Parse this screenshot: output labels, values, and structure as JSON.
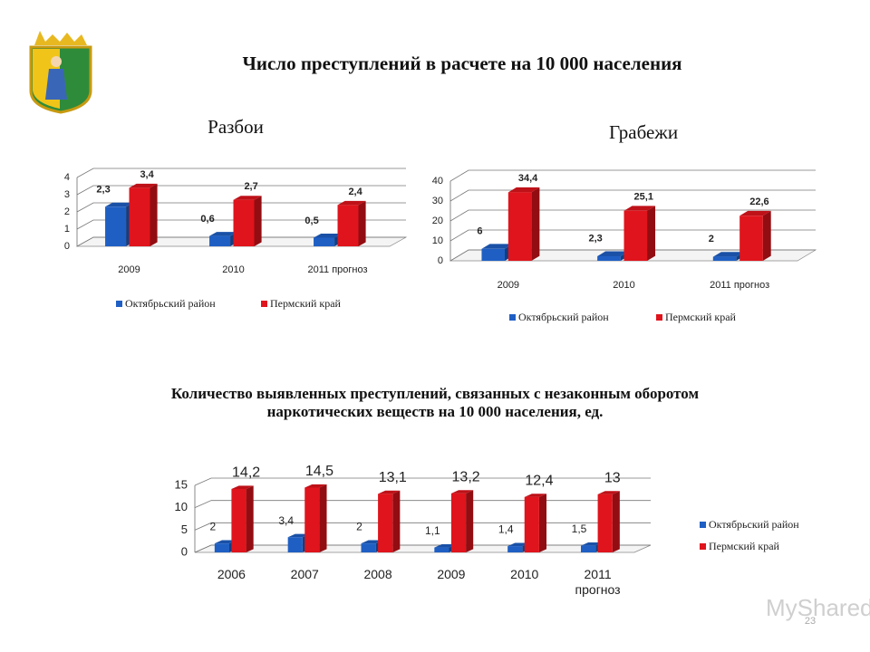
{
  "slide_title": "Число преступлений в расчете на 10 000 населения",
  "page_number": "23",
  "watermark": "MyShared",
  "chart_data": [
    {
      "type": "bar3d",
      "title": "Разбои",
      "categories": [
        "2009",
        "2010",
        "2011 прогноз"
      ],
      "series": [
        {
          "name": "Октябрьский район",
          "color": "#1f5fc4",
          "values": [
            2.3,
            0.6,
            0.5
          ],
          "value_labels": [
            "2,3",
            "0,6",
            "0,5"
          ]
        },
        {
          "name": "Пермский край",
          "color": "#e0141c",
          "values": [
            3.4,
            2.7,
            2.4
          ],
          "value_labels": [
            "3,4",
            "2,7",
            "2,4"
          ]
        }
      ],
      "ylim": [
        0,
        4
      ],
      "yticks": [
        0,
        1,
        2,
        3,
        4
      ],
      "grid": true,
      "legend": "bottom"
    },
    {
      "type": "bar3d",
      "title": "Грабежи",
      "categories": [
        "2009",
        "2010",
        "2011 прогноз"
      ],
      "series": [
        {
          "name": "Октябрьский район",
          "color": "#1f5fc4",
          "values": [
            6,
            2.3,
            2
          ],
          "value_labels": [
            "6",
            "2,3",
            "2"
          ]
        },
        {
          "name": "Пермский край",
          "color": "#e0141c",
          "values": [
            34.4,
            25.1,
            22.6
          ],
          "value_labels": [
            "34,4",
            "25,1",
            "22,6"
          ]
        }
      ],
      "ylim": [
        0,
        40
      ],
      "yticks": [
        0,
        10,
        20,
        30,
        40
      ],
      "grid": true,
      "legend": "bottom"
    },
    {
      "type": "bar3d",
      "title": "Количество выявленных преступлений, связанных с незаконным оборотом наркотических веществ на 10 000 населения, ед.",
      "categories": [
        "2006",
        "2007",
        "2008",
        "2009",
        "2010",
        "2011 прогноз"
      ],
      "series": [
        {
          "name": "Октябрьский район",
          "color": "#1f5fc4",
          "values": [
            2,
            3.4,
            2,
            1.1,
            1.4,
            1.5
          ],
          "value_labels": [
            "2",
            "3,4",
            "2",
            "1,1",
            "1,4",
            "1,5"
          ]
        },
        {
          "name": "Пермский край",
          "color": "#e0141c",
          "values": [
            14.2,
            14.5,
            13.1,
            13.2,
            12.4,
            13
          ],
          "value_labels": [
            "14,2",
            "14,5",
            "13,1",
            "13,2",
            "12,4",
            "13"
          ]
        }
      ],
      "ylim": [
        0,
        15
      ],
      "yticks": [
        0,
        5,
        10,
        15
      ],
      "grid": true,
      "legend": "right"
    }
  ]
}
